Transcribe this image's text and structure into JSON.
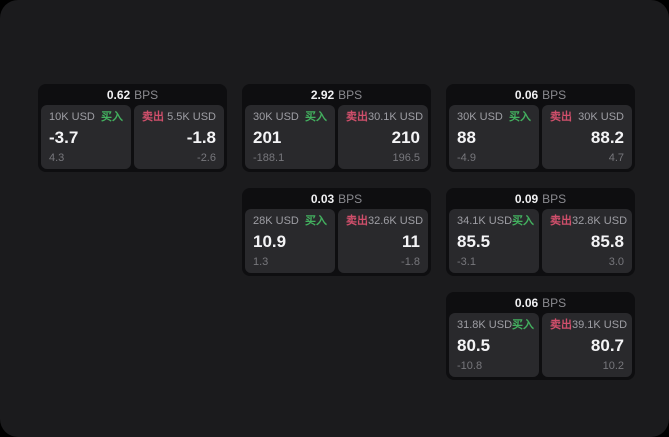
{
  "labels": {
    "bps_unit": "BPS",
    "buy": "买入",
    "sell": "卖出"
  },
  "colors": {
    "page_background": "#1b1b1d",
    "frame_background": "#000000",
    "card_background": "#0e0e10",
    "panel_background": "#29292c",
    "buy_accent": "#43b05f",
    "sell_accent": "#d04f6b",
    "primary_text": "#f4f4f6",
    "secondary_text": "#9e9ea4",
    "tertiary_text": "#77777c"
  },
  "cards": [
    {
      "bps": "0.62",
      "row": 1,
      "col": 1,
      "buy": {
        "amount": "10K USD",
        "price": "-3.7",
        "delta": "4.3"
      },
      "sell": {
        "amount": "5.5K USD",
        "price": "-1.8",
        "delta": "-2.6"
      }
    },
    {
      "bps": "2.92",
      "row": 1,
      "col": 2,
      "buy": {
        "amount": "30K USD",
        "price": "201",
        "delta": "-188.1"
      },
      "sell": {
        "amount": "30.1K USD",
        "price": "210",
        "delta": "196.5"
      }
    },
    {
      "bps": "0.06",
      "row": 1,
      "col": 3,
      "buy": {
        "amount": "30K USD",
        "price": "88",
        "delta": "-4.9"
      },
      "sell": {
        "amount": "30K USD",
        "price": "88.2",
        "delta": "4.7"
      }
    },
    {
      "bps": "0.03",
      "row": 2,
      "col": 2,
      "buy": {
        "amount": "28K USD",
        "price": "10.9",
        "delta": "1.3"
      },
      "sell": {
        "amount": "32.6K USD",
        "price": "11",
        "delta": "-1.8"
      }
    },
    {
      "bps": "0.09",
      "row": 2,
      "col": 3,
      "buy": {
        "amount": "34.1K USD",
        "price": "85.5",
        "delta": "-3.1"
      },
      "sell": {
        "amount": "32.8K USD",
        "price": "85.8",
        "delta": "3.0"
      }
    },
    {
      "bps": "0.06",
      "row": 3,
      "col": 3,
      "buy": {
        "amount": "31.8K USD",
        "price": "80.5",
        "delta": "-10.8"
      },
      "sell": {
        "amount": "39.1K USD",
        "price": "80.7",
        "delta": "10.2"
      }
    }
  ]
}
